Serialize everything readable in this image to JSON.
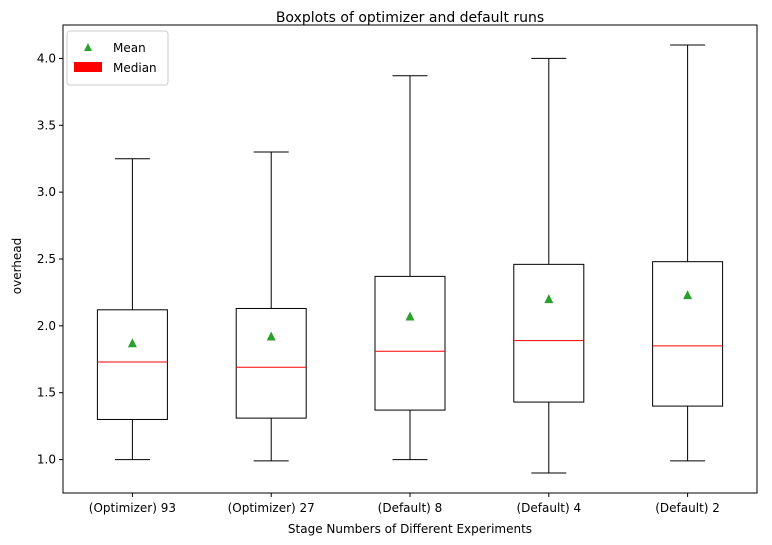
{
  "chart_data": {
    "type": "boxplot",
    "title": "Boxplots of optimizer and default runs",
    "xlabel": "Stage Numbers of Different Experiments",
    "ylabel": "overhead",
    "ylim": [
      0.75,
      4.25
    ],
    "yticks": [
      1.0,
      1.5,
      2.0,
      2.5,
      3.0,
      3.5,
      4.0
    ],
    "ytick_labels": [
      "1.0",
      "1.5",
      "2.0",
      "2.5",
      "3.0",
      "3.5",
      "4.0"
    ],
    "categories": [
      "(Optimizer) 93",
      "(Optimizer) 27",
      "(Default) 8",
      "(Default) 4",
      "(Default) 2"
    ],
    "boxes": [
      {
        "whisker_low": 1.0,
        "q1": 1.3,
        "median": 1.73,
        "q3": 2.12,
        "whisker_high": 3.25,
        "mean": 1.87
      },
      {
        "whisker_low": 0.99,
        "q1": 1.31,
        "median": 1.69,
        "q3": 2.13,
        "whisker_high": 3.3,
        "mean": 1.92
      },
      {
        "whisker_low": 1.0,
        "q1": 1.37,
        "median": 1.81,
        "q3": 2.37,
        "whisker_high": 3.87,
        "mean": 2.07
      },
      {
        "whisker_low": 0.9,
        "q1": 1.43,
        "median": 1.89,
        "q3": 2.46,
        "whisker_high": 4.0,
        "mean": 2.2
      },
      {
        "whisker_low": 0.99,
        "q1": 1.4,
        "median": 1.85,
        "q3": 2.48,
        "whisker_high": 4.1,
        "mean": 2.23
      }
    ],
    "legend": {
      "position": "top-left",
      "items": [
        {
          "label": "Mean",
          "marker": "triangle",
          "color": "#2ca02c"
        },
        {
          "label": "Median",
          "marker": "patch",
          "color": "#ff0000"
        }
      ]
    },
    "colors": {
      "box": "#000000",
      "median": "#ff0000",
      "mean": "#2ca02c"
    },
    "grid": false
  }
}
